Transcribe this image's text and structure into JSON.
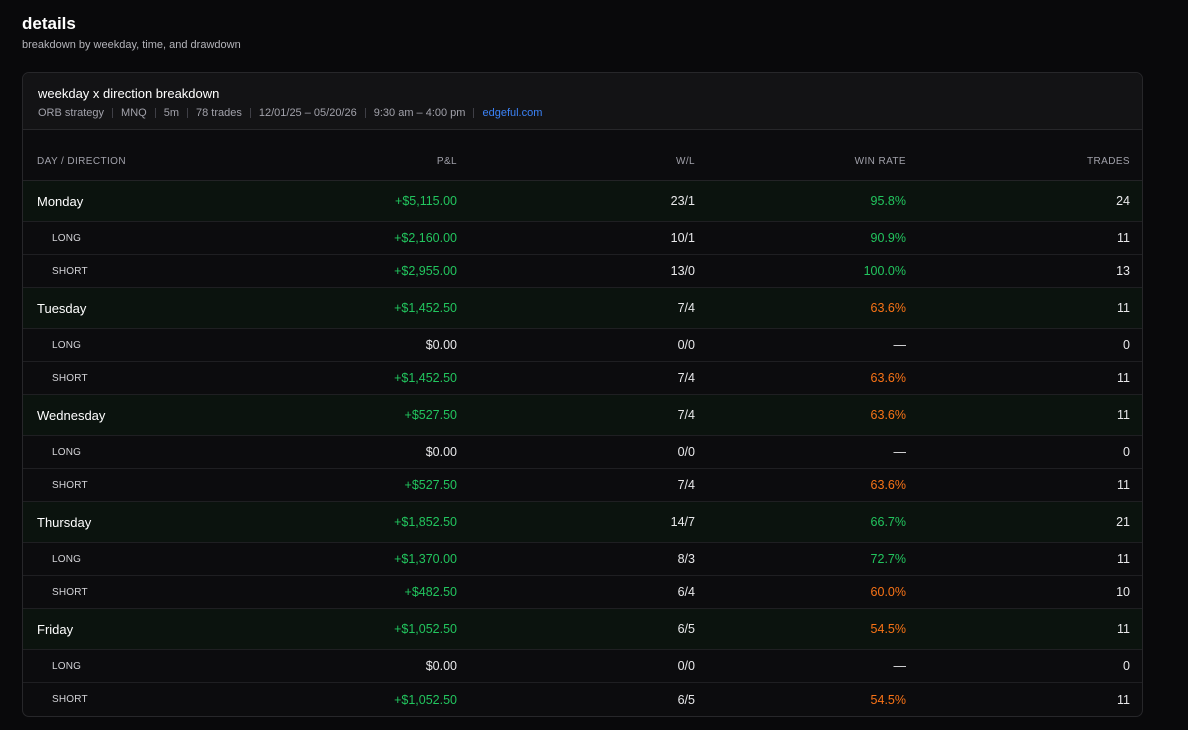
{
  "section": {
    "title": "details",
    "subtitle": "breakdown by weekday, time, and drawdown"
  },
  "card": {
    "title": "weekday x direction breakdown",
    "meta": [
      "ORB strategy",
      "MNQ",
      "5m",
      "78 trades",
      "12/01/25 – 05/20/26",
      "9:30 am – 4:00 pm"
    ],
    "link": "edgeful.com"
  },
  "table": {
    "headers": {
      "label": "DAY / DIRECTION",
      "pnl": "P&L",
      "wl": "W/L",
      "win_rate": "WIN RATE",
      "trades": "TRADES"
    },
    "rows": [
      {
        "type": "day",
        "label": "Monday",
        "pnl": "+$5,115.00",
        "pnl_state": "pos",
        "wl": "23/1",
        "win_rate": "95.8%",
        "wr_state": "green",
        "trades": "24"
      },
      {
        "type": "sub",
        "label": "LONG",
        "pnl": "+$2,160.00",
        "pnl_state": "pos",
        "wl": "10/1",
        "win_rate": "90.9%",
        "wr_state": "green",
        "trades": "11"
      },
      {
        "type": "sub",
        "label": "SHORT",
        "pnl": "+$2,955.00",
        "pnl_state": "pos",
        "wl": "13/0",
        "win_rate": "100.0%",
        "wr_state": "green",
        "trades": "13"
      },
      {
        "type": "day",
        "label": "Tuesday",
        "pnl": "+$1,452.50",
        "pnl_state": "pos",
        "wl": "7/4",
        "win_rate": "63.6%",
        "wr_state": "orange",
        "trades": "11"
      },
      {
        "type": "sub",
        "label": "LONG",
        "pnl": "$0.00",
        "pnl_state": "neutral",
        "wl": "0/0",
        "win_rate": "—",
        "wr_state": "none",
        "trades": "0"
      },
      {
        "type": "sub",
        "label": "SHORT",
        "pnl": "+$1,452.50",
        "pnl_state": "pos",
        "wl": "7/4",
        "win_rate": "63.6%",
        "wr_state": "orange",
        "trades": "11"
      },
      {
        "type": "day",
        "label": "Wednesday",
        "pnl": "+$527.50",
        "pnl_state": "pos",
        "wl": "7/4",
        "win_rate": "63.6%",
        "wr_state": "orange",
        "trades": "11"
      },
      {
        "type": "sub",
        "label": "LONG",
        "pnl": "$0.00",
        "pnl_state": "neutral",
        "wl": "0/0",
        "win_rate": "—",
        "wr_state": "none",
        "trades": "0"
      },
      {
        "type": "sub",
        "label": "SHORT",
        "pnl": "+$527.50",
        "pnl_state": "pos",
        "wl": "7/4",
        "win_rate": "63.6%",
        "wr_state": "orange",
        "trades": "11"
      },
      {
        "type": "day",
        "label": "Thursday",
        "pnl": "+$1,852.50",
        "pnl_state": "pos",
        "wl": "14/7",
        "win_rate": "66.7%",
        "wr_state": "green",
        "trades": "21"
      },
      {
        "type": "sub",
        "label": "LONG",
        "pnl": "+$1,370.00",
        "pnl_state": "pos",
        "wl": "8/3",
        "win_rate": "72.7%",
        "wr_state": "green",
        "trades": "11"
      },
      {
        "type": "sub",
        "label": "SHORT",
        "pnl": "+$482.50",
        "pnl_state": "pos",
        "wl": "6/4",
        "win_rate": "60.0%",
        "wr_state": "orange",
        "trades": "10"
      },
      {
        "type": "day",
        "label": "Friday",
        "pnl": "+$1,052.50",
        "pnl_state": "pos",
        "wl": "6/5",
        "win_rate": "54.5%",
        "wr_state": "orange",
        "trades": "11"
      },
      {
        "type": "sub",
        "label": "LONG",
        "pnl": "$0.00",
        "pnl_state": "neutral",
        "wl": "0/0",
        "win_rate": "—",
        "wr_state": "none",
        "trades": "0"
      },
      {
        "type": "sub",
        "label": "SHORT",
        "pnl": "+$1,052.50",
        "pnl_state": "pos",
        "wl": "6/5",
        "win_rate": "54.5%",
        "wr_state": "orange",
        "trades": "11"
      }
    ]
  },
  "colors": {
    "positive": "#22c55e",
    "warning": "#f97316",
    "link": "#3b82f6",
    "background": "#09090b",
    "day_row_bg": "#0b130e"
  }
}
